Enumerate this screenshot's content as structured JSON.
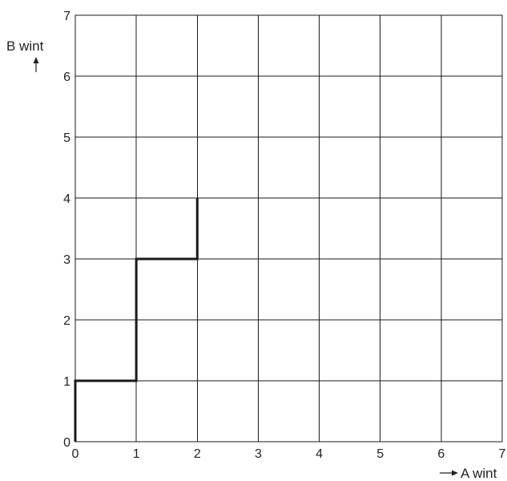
{
  "chart_data": {
    "type": "line",
    "xlabel": "A wint",
    "ylabel": "B wint",
    "xlim": [
      0,
      7
    ],
    "ylim": [
      0,
      7
    ],
    "x_ticks": [
      "0",
      "1",
      "2",
      "3",
      "4",
      "5",
      "6",
      "7"
    ],
    "y_ticks": [
      "0",
      "1",
      "2",
      "3",
      "4",
      "5",
      "6",
      "7"
    ],
    "grid": true,
    "series": [
      {
        "points": [
          [
            0,
            0
          ],
          [
            0,
            1
          ],
          [
            1,
            1
          ],
          [
            1,
            3
          ],
          [
            2,
            3
          ],
          [
            2,
            4
          ]
        ]
      }
    ]
  }
}
